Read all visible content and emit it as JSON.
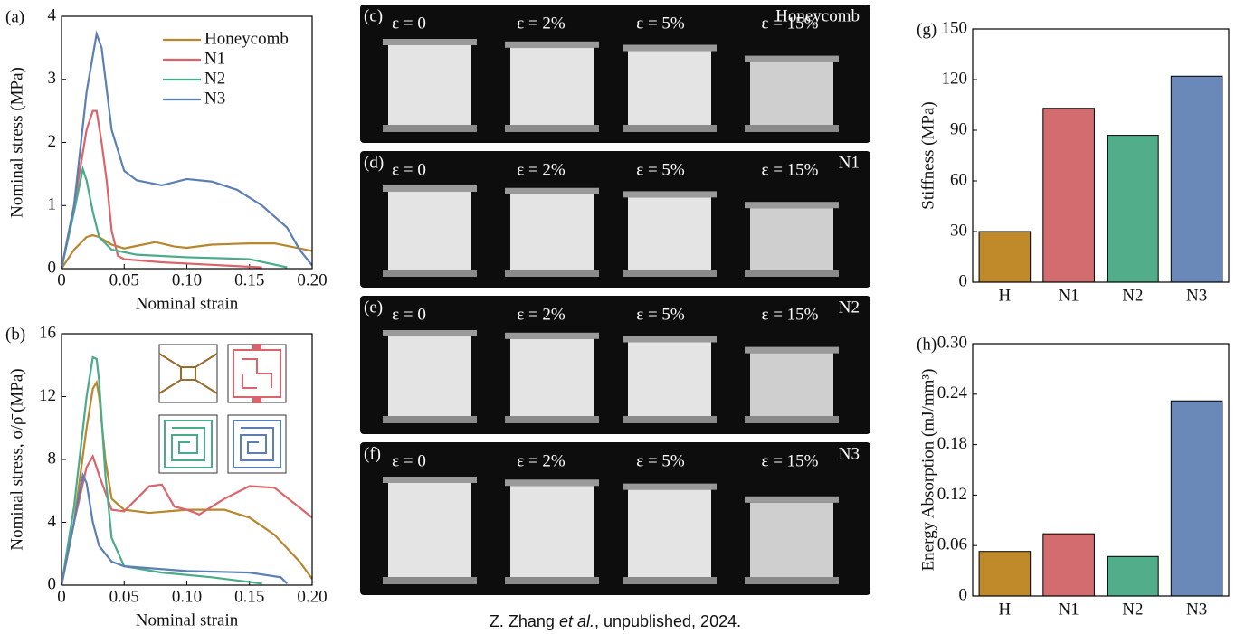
{
  "chart_data": [
    {
      "type": "line",
      "panel_label": "(a)",
      "x_label": "Nominal strain",
      "y_label": "Nominal stress (MPa)",
      "xlim": [
        0,
        0.2
      ],
      "xticks": [
        0,
        0.05,
        {
          "value": 0.1,
          "label": "0.10"
        },
        0.15,
        {
          "value": 0.2,
          "label": "0.20"
        }
      ],
      "ylim": [
        0,
        4
      ],
      "yticks": [
        0,
        1,
        2,
        3,
        4
      ],
      "legend": "upper right",
      "series": [
        {
          "name": "Honeycomb",
          "color": "#b8862c",
          "x": [
            0,
            0.01,
            0.02,
            0.025,
            0.03,
            0.04,
            0.05,
            0.06,
            0.075,
            0.09,
            0.1,
            0.12,
            0.15,
            0.17,
            0.2
          ],
          "values": [
            0,
            0.3,
            0.5,
            0.53,
            0.5,
            0.38,
            0.32,
            0.36,
            0.42,
            0.35,
            0.33,
            0.38,
            0.4,
            0.4,
            0.28
          ]
        },
        {
          "name": "N1",
          "color": "#d9646b",
          "x": [
            0,
            0.01,
            0.02,
            0.025,
            0.028,
            0.032,
            0.036,
            0.04,
            0.045,
            0.05,
            0.08,
            0.12,
            0.16
          ],
          "values": [
            0,
            1.0,
            2.2,
            2.5,
            2.5,
            2.0,
            1.4,
            0.6,
            0.2,
            0.15,
            0.1,
            0.06,
            0.02
          ]
        },
        {
          "name": "N2",
          "color": "#4aab88",
          "x": [
            0,
            0.01,
            0.017,
            0.02,
            0.025,
            0.03,
            0.04,
            0.06,
            0.1,
            0.15,
            0.18
          ],
          "values": [
            0,
            0.9,
            1.58,
            1.4,
            0.9,
            0.5,
            0.3,
            0.22,
            0.18,
            0.15,
            0.02
          ]
        },
        {
          "name": "N3",
          "color": "#5b7fb5",
          "x": [
            0,
            0.01,
            0.02,
            0.028,
            0.032,
            0.04,
            0.05,
            0.06,
            0.08,
            0.1,
            0.12,
            0.14,
            0.16,
            0.18,
            0.19,
            0.2
          ],
          "values": [
            0,
            1.0,
            2.8,
            3.72,
            3.5,
            2.2,
            1.55,
            1.4,
            1.32,
            1.42,
            1.38,
            1.25,
            1.0,
            0.65,
            0.3,
            0.05
          ]
        }
      ]
    },
    {
      "type": "line",
      "panel_label": "(b)",
      "x_label": "Nominal strain",
      "y_label": "Nominal stress, σ/ρ̄ (MPa)",
      "xlim": [
        0,
        0.2
      ],
      "xticks": [
        0,
        0.05,
        {
          "value": 0.1,
          "label": "0.10"
        },
        0.15,
        {
          "value": 0.2,
          "label": "0.20"
        }
      ],
      "ylim": [
        0,
        16
      ],
      "yticks": [
        0,
        4,
        8,
        12,
        16
      ],
      "series": [
        {
          "color": "#b8862c",
          "x": [
            0,
            0.01,
            0.02,
            0.025,
            0.028,
            0.03,
            0.035,
            0.04,
            0.05,
            0.07,
            0.1,
            0.13,
            0.15,
            0.17,
            0.19,
            0.2
          ],
          "values": [
            0,
            4,
            10,
            12.5,
            12.9,
            12,
            8,
            5.5,
            4.8,
            4.6,
            4.8,
            4.8,
            4.3,
            3.2,
            1.5,
            0.4
          ]
        },
        {
          "color": "#d9646b",
          "x": [
            0,
            0.01,
            0.02,
            0.025,
            0.03,
            0.04,
            0.05,
            0.07,
            0.08,
            0.09,
            0.1,
            0.11,
            0.13,
            0.15,
            0.17,
            0.2
          ],
          "values": [
            0,
            4,
            7.5,
            8.2,
            7,
            4.8,
            4.7,
            6.3,
            6.4,
            5,
            4.8,
            4.5,
            5.5,
            6.3,
            6.2,
            4.3
          ]
        },
        {
          "color": "#4aab88",
          "x": [
            0,
            0.01,
            0.02,
            0.025,
            0.028,
            0.03,
            0.035,
            0.04,
            0.05,
            0.08,
            0.12,
            0.16
          ],
          "values": [
            0,
            5,
            12,
            14.5,
            14.4,
            13,
            7,
            3,
            1.2,
            0.8,
            0.5,
            0.1
          ]
        },
        {
          "color": "#5b7fb5",
          "x": [
            0,
            0.01,
            0.017,
            0.02,
            0.025,
            0.03,
            0.04,
            0.05,
            0.1,
            0.15,
            0.175,
            0.18
          ],
          "values": [
            0,
            4,
            7,
            6.5,
            4,
            2.5,
            1.5,
            1.2,
            0.9,
            0.8,
            0.5,
            0.1
          ]
        }
      ]
    },
    {
      "type": "bar",
      "panel_label": "(g)",
      "y_label": "Stiffness (MPa)",
      "categories": [
        "H",
        "N1",
        "N2",
        "N3"
      ],
      "values": [
        30,
        103,
        87,
        122
      ],
      "colors": [
        "#c08a2a",
        "#d36c6e",
        "#52ad8a",
        "#6a89b8"
      ],
      "ylim": [
        0,
        150
      ],
      "yticks": [
        0,
        30,
        60,
        90,
        120,
        150
      ]
    },
    {
      "type": "bar",
      "panel_label": "(h)",
      "y_label": "Energy Absorption (mJ/mm³)",
      "categories": [
        "H",
        "N1",
        "N2",
        "N3"
      ],
      "values": [
        0.053,
        0.074,
        0.047,
        0.232
      ],
      "colors": [
        "#c08a2a",
        "#d36c6e",
        "#52ad8a",
        "#6a89b8"
      ],
      "ylim": [
        0,
        0.3
      ],
      "yticks": [
        0,
        0.06,
        0.12,
        0.18,
        0.24,
        {
          "value": 0.3,
          "label": "0.30"
        }
      ]
    }
  ],
  "photo_panels": [
    {
      "label": "(c)",
      "name": "Honeycomb",
      "strains": [
        "ε = 0",
        "ε = 2%",
        "ε = 5%",
        "ε = 15%"
      ]
    },
    {
      "label": "(d)",
      "name": "N1",
      "strains": [
        "ε = 0",
        "ε = 2%",
        "ε = 5%",
        "ε = 15%"
      ]
    },
    {
      "label": "(e)",
      "name": "N2",
      "strains": [
        "ε = 0",
        "ε = 2%",
        "ε = 5%",
        "ε = 15%"
      ]
    },
    {
      "label": "(f)",
      "name": "N3",
      "strains": [
        "ε = 0",
        "ε = 2%",
        "ε = 5%",
        "ε = 15%"
      ]
    }
  ],
  "caption": [
    "Z. Zhang ",
    "et al.",
    ", unpublished, 2024."
  ]
}
